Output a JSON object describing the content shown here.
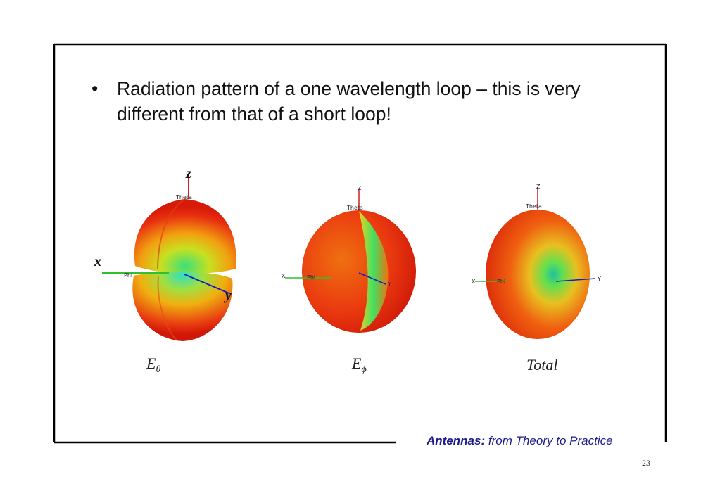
{
  "slide": {
    "bullet": "Radiation pattern of a one wavelength loop – this is very different from that of a short loop!",
    "figures": [
      {
        "caption": {
          "main": "E",
          "sub": "θ"
        },
        "axes": {
          "z": "z",
          "x": "x",
          "y": "y",
          "theta": "Theta",
          "phi": "Phi"
        }
      },
      {
        "caption": {
          "main": "E",
          "sub": "ϕ"
        },
        "axes": {
          "z": "Z",
          "x": "X",
          "y": "Y",
          "theta": "Theta",
          "phi": "Phi"
        }
      },
      {
        "caption": {
          "main": "Total"
        },
        "axes": {
          "z": "Z",
          "x": "X",
          "y": "Y",
          "theta": "Theta",
          "phi": "Phi"
        }
      }
    ],
    "footer": {
      "bold": "Antennas:",
      "italic": "from Theory to Practice"
    },
    "page_number": "23"
  }
}
